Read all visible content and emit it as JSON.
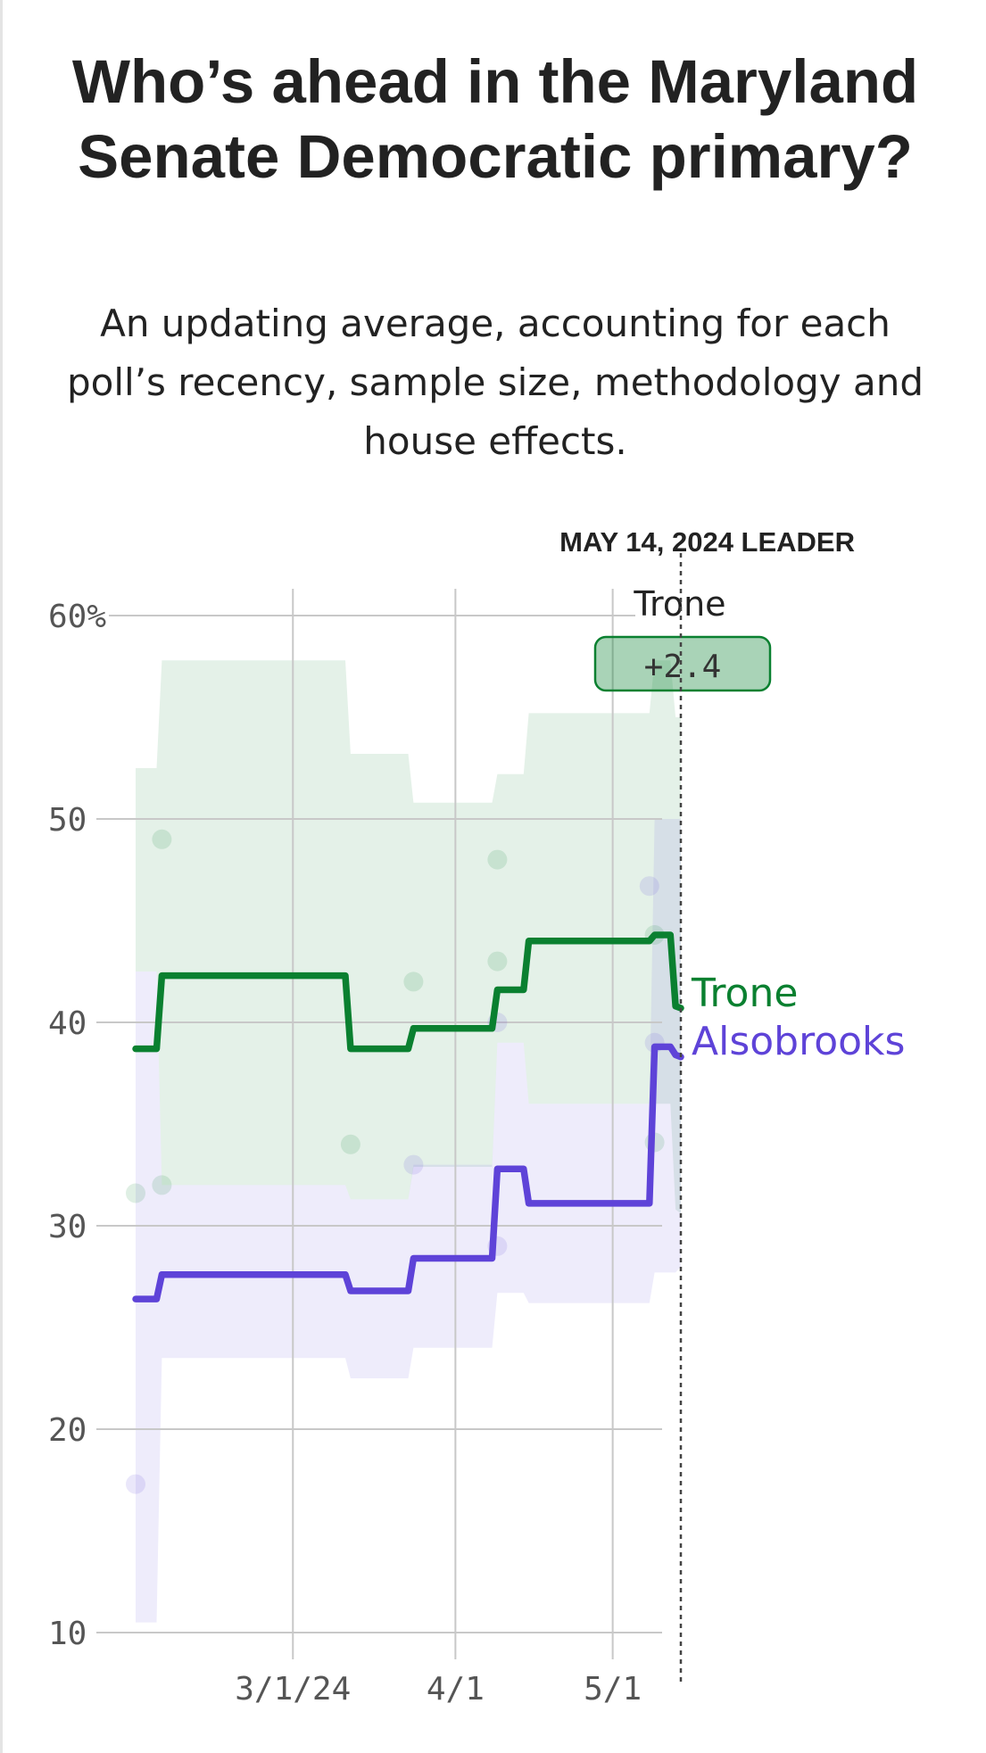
{
  "header": {
    "title": "Who’s ahead in the Maryland Senate Democratic primary?",
    "subtitle": "An updating average, accounting for each poll’s recency, sample size, methodology and house effects."
  },
  "leader_box": {
    "heading": "MAY 14, 2024 LEADER",
    "name": "Trone",
    "margin": "+2.4",
    "color": "#0a8030"
  },
  "chart_data": {
    "type": "line",
    "x_start": "2024-01-31",
    "x_end": "2024-05-14",
    "ylim": [
      10,
      60
    ],
    "y_ticks": [
      10,
      20,
      30,
      40,
      50,
      60
    ],
    "y_tick_labels": [
      "10",
      "20",
      "30",
      "40",
      "50",
      "60%"
    ],
    "x_ticks": [
      {
        "date": "2024-03-01",
        "label": "3/1/24"
      },
      {
        "date": "2024-04-01",
        "label": "4/1"
      },
      {
        "date": "2024-05-01",
        "label": "5/1"
      }
    ],
    "grid": true,
    "current_date": "2024-05-14",
    "series": [
      {
        "name": "Trone",
        "color": "#0a8030",
        "band_color": "#0a8030",
        "points": [
          {
            "date": "2024-01-31",
            "value": 38.7,
            "lo": 42.5,
            "hi": 52.5
          },
          {
            "date": "2024-02-04",
            "value": 38.7,
            "lo": 42.5,
            "hi": 52.5
          },
          {
            "date": "2024-02-05",
            "value": 42.3,
            "lo": 32.0,
            "hi": 57.8
          },
          {
            "date": "2024-03-11",
            "value": 42.3,
            "lo": 32.0,
            "hi": 57.8
          },
          {
            "date": "2024-03-12",
            "value": 38.7,
            "lo": 31.3,
            "hi": 53.2
          },
          {
            "date": "2024-03-23",
            "value": 38.7,
            "lo": 31.3,
            "hi": 53.2
          },
          {
            "date": "2024-03-24",
            "value": 39.7,
            "lo": 32.9,
            "hi": 50.8
          },
          {
            "date": "2024-04-08",
            "value": 39.7,
            "lo": 32.9,
            "hi": 50.8
          },
          {
            "date": "2024-04-09",
            "value": 41.6,
            "lo": 39.0,
            "hi": 52.2
          },
          {
            "date": "2024-04-14",
            "value": 41.6,
            "lo": 39.0,
            "hi": 52.2
          },
          {
            "date": "2024-04-15",
            "value": 44.0,
            "lo": 36.0,
            "hi": 55.2
          },
          {
            "date": "2024-05-08",
            "value": 44.0,
            "lo": 36.0,
            "hi": 55.2
          },
          {
            "date": "2024-05-09",
            "value": 44.3,
            "lo": 36.0,
            "hi": 57.8
          },
          {
            "date": "2024-05-12",
            "value": 44.3,
            "lo": 36.0,
            "hi": 57.8
          },
          {
            "date": "2024-05-13",
            "value": 40.8,
            "lo": 30.8,
            "hi": 55.0
          },
          {
            "date": "2024-05-14",
            "value": 40.7,
            "lo": 30.6,
            "hi": 55.0
          }
        ],
        "polls": [
          {
            "date": "2024-01-31",
            "value": 31.6
          },
          {
            "date": "2024-02-05",
            "value": 49.0
          },
          {
            "date": "2024-02-05",
            "value": 32.0
          },
          {
            "date": "2024-03-12",
            "value": 34.0
          },
          {
            "date": "2024-03-24",
            "value": 42.0
          },
          {
            "date": "2024-04-09",
            "value": 48.0
          },
          {
            "date": "2024-04-09",
            "value": 43.0
          },
          {
            "date": "2024-05-09",
            "value": 44.3
          },
          {
            "date": "2024-05-09",
            "value": 34.1
          }
        ]
      },
      {
        "name": "Alsobrooks",
        "color": "#5e43d8",
        "band_color": "#7b6be0",
        "points": [
          {
            "date": "2024-01-31",
            "value": 26.4,
            "lo": 10.5,
            "hi": 42.5
          },
          {
            "date": "2024-02-04",
            "value": 26.4,
            "lo": 10.5,
            "hi": 42.5
          },
          {
            "date": "2024-02-05",
            "value": 27.6,
            "lo": 23.5,
            "hi": 32.0
          },
          {
            "date": "2024-03-11",
            "value": 27.6,
            "lo": 23.5,
            "hi": 32.0
          },
          {
            "date": "2024-03-12",
            "value": 26.8,
            "lo": 22.5,
            "hi": 31.3
          },
          {
            "date": "2024-03-23",
            "value": 26.8,
            "lo": 22.5,
            "hi": 31.3
          },
          {
            "date": "2024-03-24",
            "value": 28.4,
            "lo": 24.0,
            "hi": 33.0
          },
          {
            "date": "2024-04-08",
            "value": 28.4,
            "lo": 24.0,
            "hi": 33.0
          },
          {
            "date": "2024-04-09",
            "value": 32.8,
            "lo": 26.7,
            "hi": 39.0
          },
          {
            "date": "2024-04-14",
            "value": 32.8,
            "lo": 26.7,
            "hi": 39.0
          },
          {
            "date": "2024-04-15",
            "value": 31.1,
            "lo": 26.2,
            "hi": 36.0
          },
          {
            "date": "2024-05-08",
            "value": 31.1,
            "lo": 26.2,
            "hi": 36.0
          },
          {
            "date": "2024-05-09",
            "value": 38.8,
            "lo": 27.7,
            "hi": 50.0
          },
          {
            "date": "2024-05-12",
            "value": 38.8,
            "lo": 27.7,
            "hi": 50.0
          },
          {
            "date": "2024-05-13",
            "value": 38.4,
            "lo": 27.7,
            "hi": 50.0
          },
          {
            "date": "2024-05-14",
            "value": 38.3,
            "lo": 28.0,
            "hi": 50.0
          }
        ],
        "polls": [
          {
            "date": "2024-01-31",
            "value": 17.3
          },
          {
            "date": "2024-03-24",
            "value": 33.0
          },
          {
            "date": "2024-04-09",
            "value": 40.0
          },
          {
            "date": "2024-04-09",
            "value": 29.0
          },
          {
            "date": "2024-05-08",
            "value": 46.7
          },
          {
            "date": "2024-05-09",
            "value": 39.0
          }
        ]
      }
    ]
  }
}
